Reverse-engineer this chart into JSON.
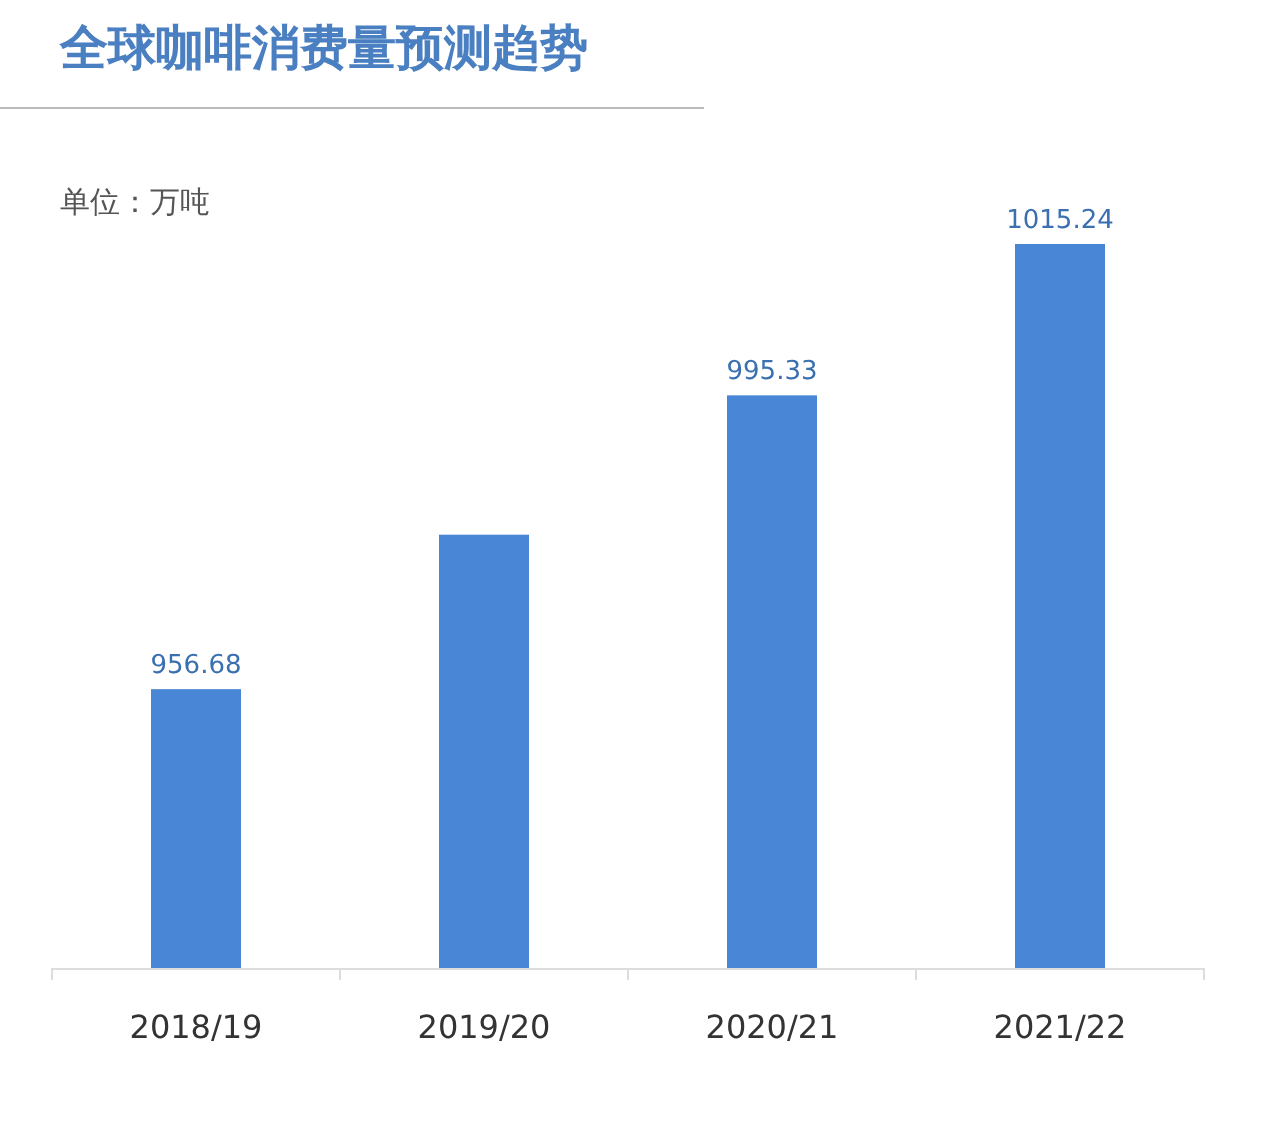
{
  "chart_data": {
    "type": "bar",
    "title": "全球咖啡消费量预测趋势",
    "subtitle": "单位：万吨",
    "categories": [
      "2018/19",
      "2019/20",
      "2020/21",
      "2021/22"
    ],
    "values": [
      956.68,
      977,
      995.33,
      1015.24
    ],
    "value_labels": [
      "956.68",
      null,
      "995.33",
      "1015.24"
    ],
    "color": "#4a86d6",
    "ylim": [
      920,
      1015.24
    ],
    "tick_labels": "x"
  }
}
